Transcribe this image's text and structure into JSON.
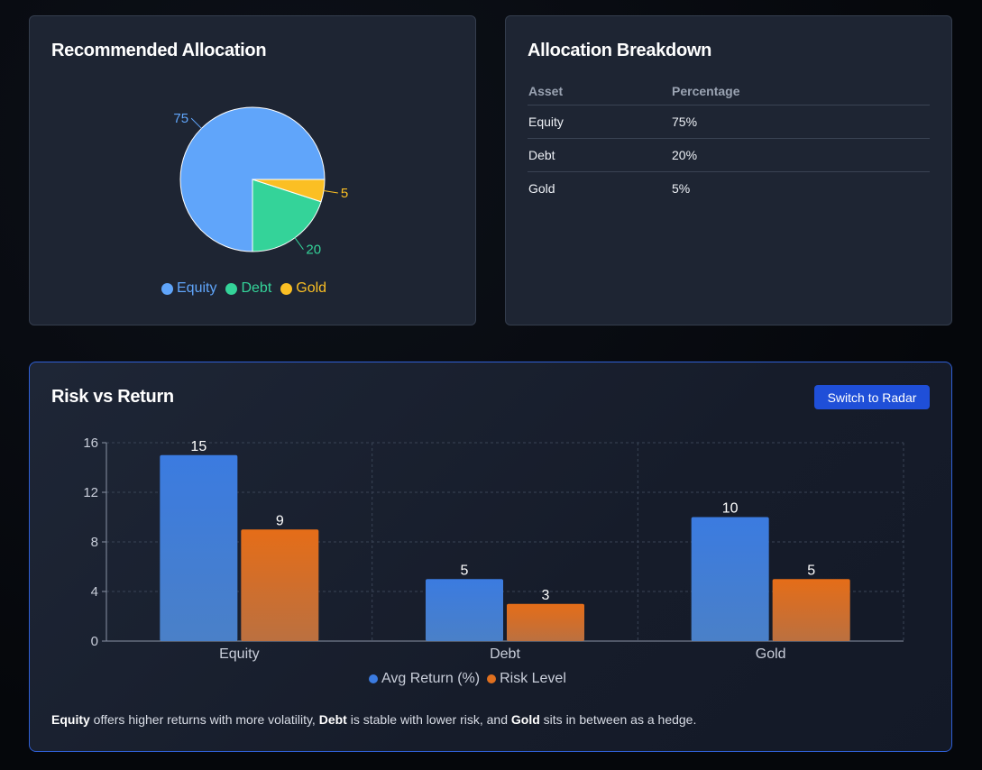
{
  "colors": {
    "equity": "#60a5fa",
    "debt": "#34d399",
    "gold": "#fbbf24",
    "avg_return": "#3b7be0",
    "risk_level": "#e0701f",
    "button": "#1f4fd8"
  },
  "pie_card": {
    "title": "Recommended Allocation"
  },
  "table_card": {
    "title": "Allocation Breakdown",
    "headers": [
      "Asset",
      "Percentage"
    ],
    "rows": [
      [
        "Equity",
        "75%"
      ],
      [
        "Debt",
        "20%"
      ],
      [
        "Gold",
        "5%"
      ]
    ]
  },
  "bar_card": {
    "title": "Risk vs Return",
    "switch_label": "Switch to Radar",
    "note": {
      "equity": "Equity",
      "t1": " offers higher returns with more volatility, ",
      "debt": "Debt",
      "t2": " is stable with lower risk, and ",
      "gold": "Gold",
      "t3": " sits in between as a hedge."
    }
  },
  "chart_data": [
    {
      "type": "pie",
      "categories": [
        "Equity",
        "Debt",
        "Gold"
      ],
      "values": [
        75,
        20,
        5
      ],
      "legend": "bottom"
    },
    {
      "type": "bar",
      "categories": [
        "Equity",
        "Debt",
        "Gold"
      ],
      "series": [
        {
          "name": "Avg Return (%)",
          "values": [
            15,
            5,
            10
          ]
        },
        {
          "name": "Risk Level",
          "values": [
            9,
            3,
            5
          ]
        }
      ],
      "yticks": [
        0,
        4,
        8,
        12,
        16
      ],
      "ylim": [
        0,
        16
      ],
      "grid": true,
      "legend": "bottom"
    }
  ]
}
